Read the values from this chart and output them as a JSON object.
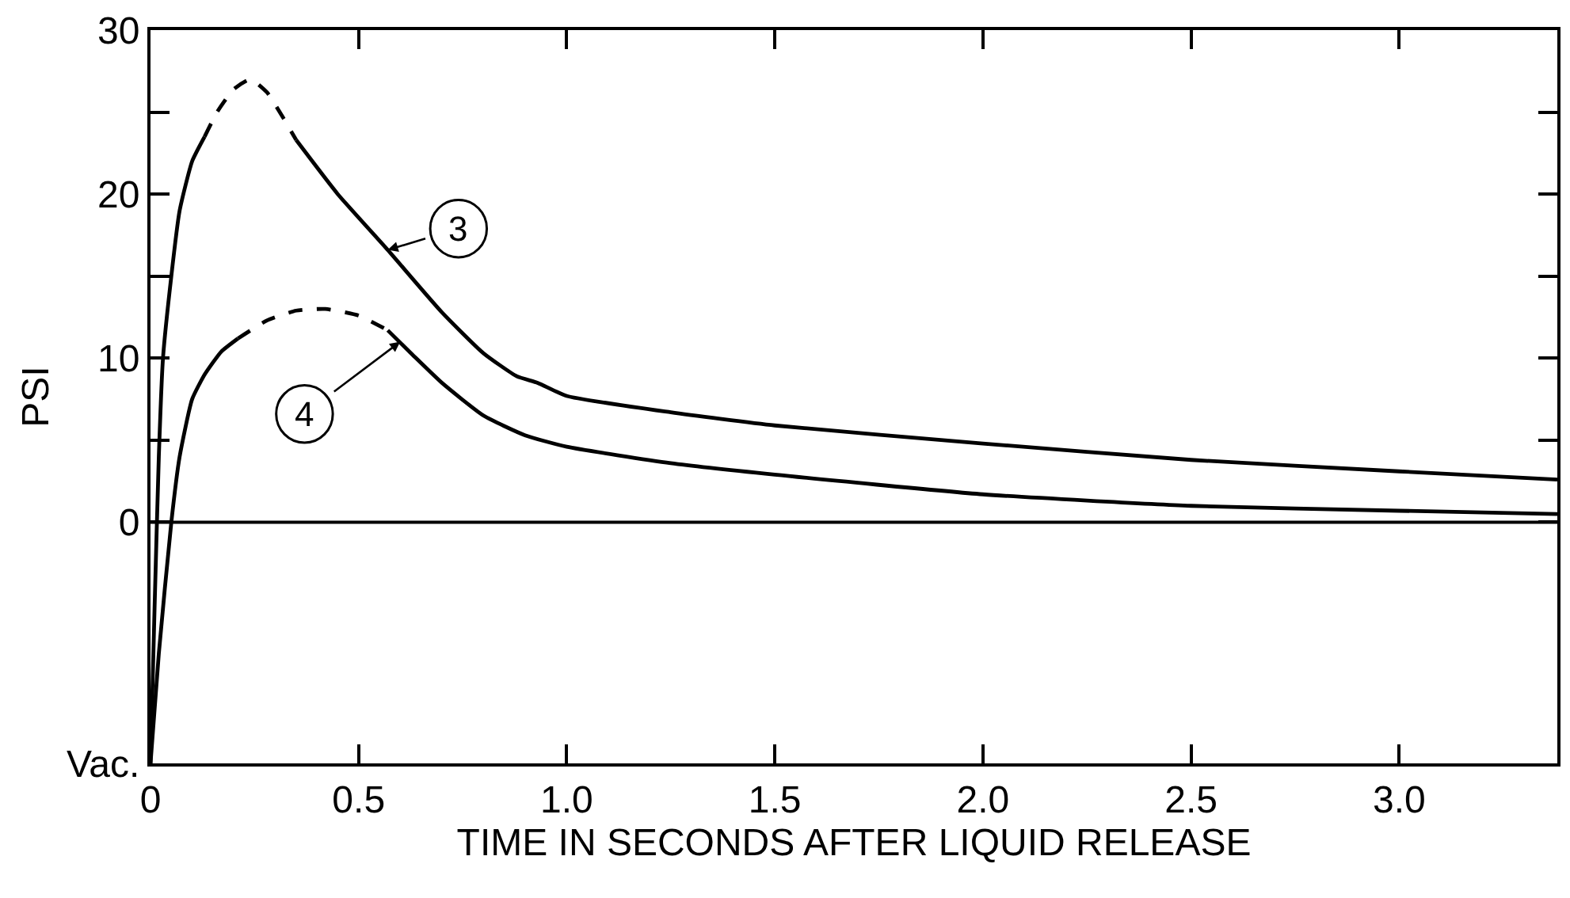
{
  "chart_data": {
    "type": "line",
    "xlabel": "TIME IN SECONDS AFTER LIQUID RELEASE",
    "ylabel": "PSI",
    "xlim": [
      0,
      3.38
    ],
    "ylim": [
      -14.7,
      30
    ],
    "xticks": [
      0,
      0.5,
      {
        "value": 1,
        "label": "1.0"
      },
      1.5,
      {
        "value": 2,
        "label": "2.0"
      },
      2.5,
      {
        "value": 3,
        "label": "3.0"
      }
    ],
    "yticks": [
      {
        "value": -14.7,
        "label": "Vac."
      },
      0,
      {
        "value": 5,
        "label": null
      },
      10,
      {
        "value": 15,
        "label": null
      },
      20,
      {
        "value": 25,
        "label": null
      },
      30
    ],
    "marker": "none",
    "ref_lines": [
      {
        "axis": "y",
        "value": 0,
        "color": "#000000",
        "line_style": "solid"
      }
    ],
    "series": [
      {
        "color": "#000000",
        "line_style": "solid",
        "x": [
          0,
          0.01,
          0.02,
          0.03,
          0.05,
          0.07,
          0.1,
          0.13
        ],
        "values": [
          -14.7,
          -5,
          4,
          10,
          15,
          19,
          22,
          23.5
        ]
      },
      {
        "color": "#000000",
        "line_style": "dashed",
        "x": [
          0.13,
          0.16,
          0.2,
          0.24,
          0.28,
          0.32,
          0.35
        ],
        "values": [
          23.5,
          25,
          26.4,
          27,
          26.2,
          24.6,
          23.3
        ]
      },
      {
        "color": "#000000",
        "line_style": "solid",
        "x": [
          0.35,
          0.45,
          0.57,
          0.7,
          0.8,
          0.88,
          0.93,
          1.0,
          1.25,
          1.5,
          2.0,
          2.5,
          3.0,
          3.38
        ],
        "values": [
          23.3,
          20,
          16.6,
          12.8,
          10.3,
          8.9,
          8.5,
          7.7,
          6.7,
          5.9,
          4.8,
          3.8,
          3.1,
          2.6
        ]
      },
      {
        "color": "#000000",
        "line_style": "solid",
        "x": [
          0,
          0.02,
          0.05,
          0.07,
          0.1,
          0.13,
          0.17,
          0.21
        ],
        "values": [
          -14.7,
          -8,
          0,
          4,
          7.5,
          9,
          10.4,
          11.2
        ]
      },
      {
        "color": "#000000",
        "line_style": "dashed",
        "x": [
          0.21,
          0.28,
          0.35,
          0.42,
          0.5,
          0.57
        ],
        "values": [
          11.2,
          12.3,
          12.9,
          13,
          12.6,
          11.7
        ]
      },
      {
        "color": "#000000",
        "line_style": "solid",
        "x": [
          0.57,
          0.63,
          0.7,
          0.8,
          0.9,
          1.0,
          1.25,
          1.5,
          2.0,
          2.5,
          3.0,
          3.38
        ],
        "values": [
          11.7,
          10.2,
          8.5,
          6.5,
          5.3,
          4.6,
          3.6,
          2.9,
          1.7,
          1.0,
          0.7,
          0.5
        ]
      }
    ],
    "annotations": [
      {
        "text": "3",
        "x": 0.57,
        "y": 16.6
      },
      {
        "text": "4",
        "x": 0.6,
        "y": 11
      }
    ]
  }
}
